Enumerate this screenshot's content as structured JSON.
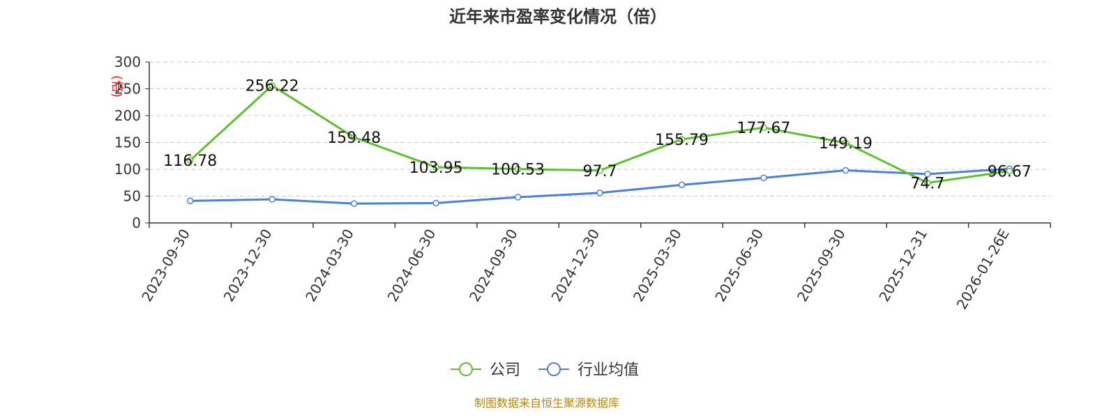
{
  "chart_data": {
    "type": "line",
    "title": "近年来市盈率变化情况（倍）",
    "y_unit_label": "(倍)",
    "ylim": [
      0,
      300
    ],
    "y_ticks": [
      0,
      50,
      100,
      150,
      200,
      250,
      300
    ],
    "grid": true,
    "legend_position": "bottom-center",
    "categories": [
      "2023-09-30",
      "2023-12-30",
      "2024-03-30",
      "2024-06-30",
      "2024-09-30",
      "2024-12-30",
      "2025-03-30",
      "2025-06-30",
      "2025-09-30",
      "2025-12-31",
      "2026-01-26E"
    ],
    "series": [
      {
        "name": "公司",
        "color": "#5cc12f",
        "values": [
          116.78,
          256.22,
          159.48,
          103.95,
          100.53,
          97.7,
          155.79,
          177.67,
          149.19,
          74.7,
          96.67
        ],
        "labels": [
          "116.78",
          "256.22",
          "159.48",
          "103.95",
          "100.53",
          "97.7",
          "155.79",
          "177.67",
          "149.19",
          "74.7",
          "96.67"
        ]
      },
      {
        "name": "行业均值",
        "color": "#4a7fdc",
        "values": [
          41,
          44,
          36,
          37,
          48,
          56,
          71,
          84,
          98,
          91,
          101
        ]
      }
    ],
    "source_note": "制图数据来自恒生聚源数据库",
    "source_color": "#b8860b",
    "unit_color": "#e02020"
  }
}
